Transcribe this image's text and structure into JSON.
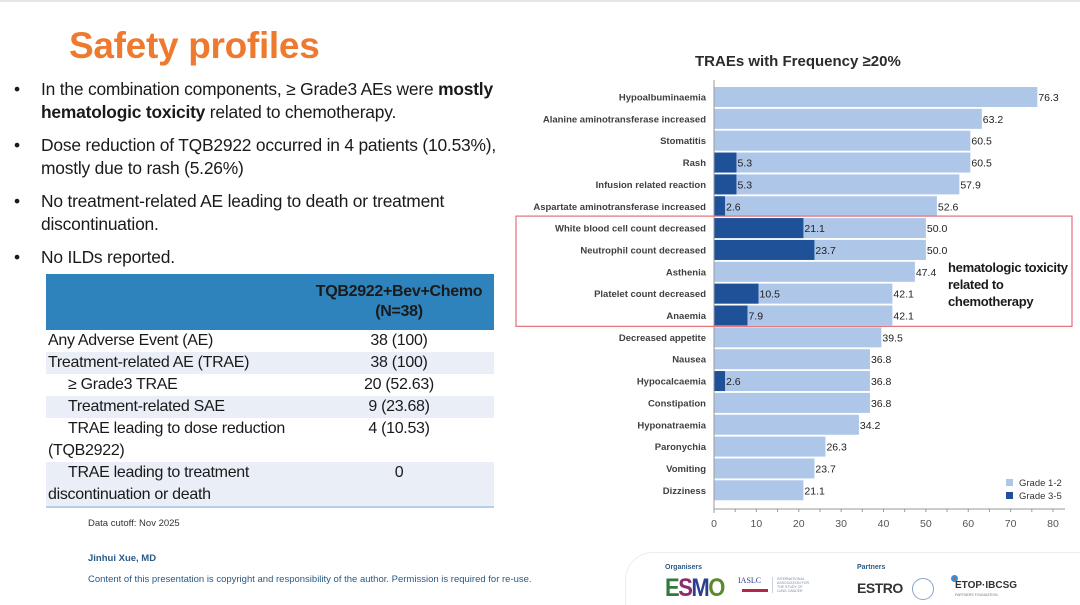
{
  "slide": {
    "title": "Safety profiles",
    "bullets": [
      {
        "pre": "In the combination components, ≥ Grade3 AEs were ",
        "bold": "mostly hematologic toxicity",
        "post": " related to chemotherapy."
      },
      {
        "pre": "Dose reduction of TQB2922 occurred in 4 patients (10.53%), mostly due to rash (5.26%)",
        "bold": "",
        "post": ""
      },
      {
        "pre": "No treatment-related AE leading to death or treatment discontinuation.",
        "bold": "",
        "post": ""
      },
      {
        "pre": "No ILDs reported.",
        "bold": "",
        "post": ""
      }
    ],
    "table": {
      "header_line1": "TQB2922+Bev+Chemo",
      "header_line2": "(N=38)",
      "rows": [
        {
          "label": "Any Adverse Event (AE)",
          "value": "38 (100)"
        },
        {
          "label": "Treatment-related AE (TRAE)",
          "value": "38 (100)"
        },
        {
          "label": "≥ Grade3 TRAE",
          "value": "20 (52.63)"
        },
        {
          "label": "Treatment-related SAE",
          "value": "9 (23.68)"
        },
        {
          "label_line1": "TRAE leading to dose reduction",
          "label_line2": "(TQB2922)",
          "value": "4 (10.53)"
        },
        {
          "label_line1": "TRAE leading to treatment",
          "label_line2": "discontinuation or death",
          "value": "0"
        }
      ]
    },
    "data_cutoff": "Data cutoff: Nov 2025",
    "author": "Jinhui Xue, MD",
    "copyright": "Content of this presentation is copyright and responsibility of the author. Permission is required for re-use.",
    "annotation": {
      "line1": "hematologic toxicity",
      "line2": "related to",
      "line3": "chemotherapy"
    },
    "logos": {
      "organisers_label": "Organisers",
      "partners_label": "Partners",
      "esmo": [
        "E",
        "S",
        "M",
        "O"
      ],
      "iaslc": "IASLC",
      "iaslc_sub": "INTERNATIONAL ASSOCIATION FOR THE STUDY OF LUNG CANCER",
      "estro": "ESTRO",
      "etop": "ETOP·IBCSG",
      "etop_sub": "PARTNERS FOUNDATION"
    }
  },
  "chart_data": {
    "type": "bar",
    "orientation": "horizontal",
    "title": "TRAEs with Frequency ≥20%",
    "xlabel": "",
    "ylabel": "",
    "xlim": [
      0,
      80
    ],
    "xticks": [
      0,
      10,
      20,
      30,
      40,
      50,
      60,
      70,
      80
    ],
    "grid": false,
    "legend_position": "bottom-right",
    "colors": {
      "grade12": "#aec6e8",
      "grade35": "#1f5199",
      "highlight_box": "#e0707a"
    },
    "categories": [
      "Hypoalbuminaemia",
      "Alanine aminotransferase increased",
      "Stomatitis",
      "Rash",
      "Infusion related reaction",
      "Aspartate aminotransferase increased",
      "White blood cell count decreased",
      "Neutrophil count decreased",
      "Asthenia",
      "Platelet count decreased",
      "Anaemia",
      "Decreased appetite",
      "Nausea",
      "Hypocalcaemia",
      "Constipation",
      "Hyponatraemia",
      "Paronychia",
      "Vomiting",
      "Dizziness"
    ],
    "series": [
      {
        "name": "Grade 1-2",
        "values": [
          76.3,
          63.2,
          60.5,
          60.5,
          57.9,
          52.6,
          50.0,
          50.0,
          47.4,
          42.1,
          42.1,
          39.5,
          36.8,
          36.8,
          36.8,
          34.2,
          26.3,
          23.7,
          21.1
        ]
      },
      {
        "name": "Grade 3-5",
        "values": [
          null,
          null,
          null,
          5.3,
          5.3,
          2.6,
          21.1,
          23.7,
          null,
          10.5,
          7.9,
          null,
          null,
          2.6,
          null,
          null,
          null,
          null,
          null
        ]
      }
    ],
    "highlight": {
      "categories_from": 6,
      "categories_to": 10,
      "label": "hematologic toxicity related to chemotherapy"
    }
  }
}
